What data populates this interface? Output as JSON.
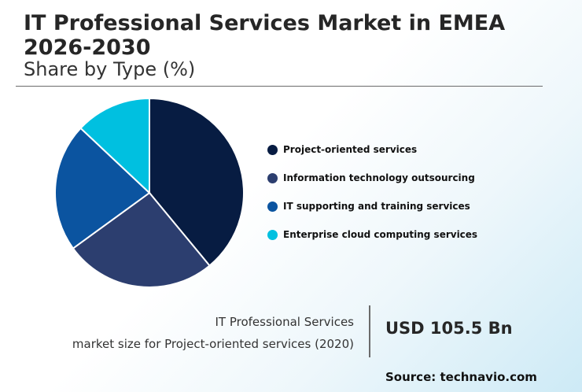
{
  "header": {
    "title": "IT Professional Services Market in EMEA 2026-2030",
    "subtitle": "Share by Type (%)"
  },
  "chart_data": {
    "type": "pie",
    "title": "IT Professional Services Market in EMEA 2026-2030",
    "subtitle": "Share by Type (%)",
    "categories": [
      "Project-oriented services",
      "Information technology outsourcing",
      "IT supporting and training services",
      "Enterprise cloud computing services"
    ],
    "values": [
      39,
      26,
      22,
      13
    ],
    "colors": [
      "#071c42",
      "#2c3e6f",
      "#0b54a0",
      "#00c0e0"
    ],
    "legend_position": "right"
  },
  "footer": {
    "label_line1": "IT Professional Services",
    "label_line2": "market size for Project-oriented services (2020)",
    "value": "USD 105.5 Bn",
    "source": "Source: technavio.com"
  }
}
